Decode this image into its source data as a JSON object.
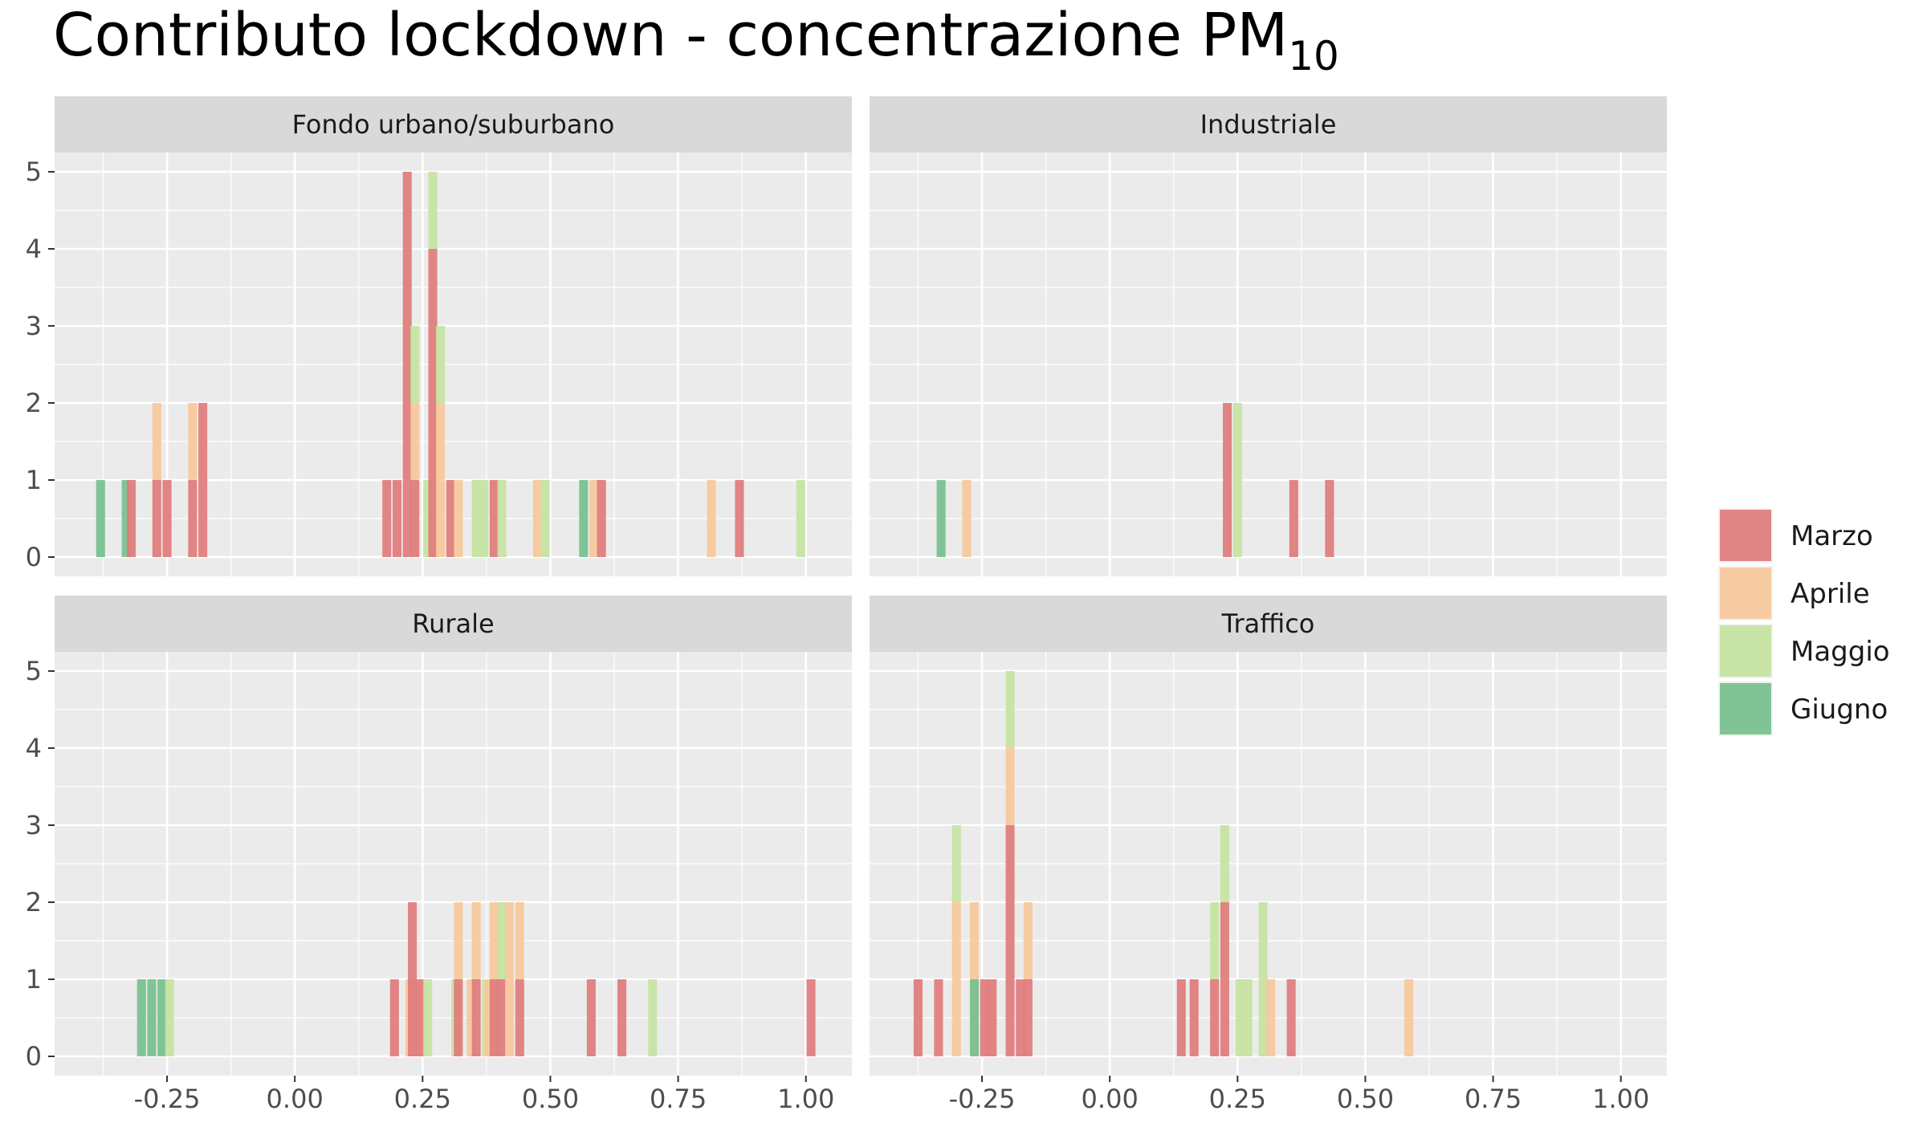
{
  "chart_data": {
    "type": "bar",
    "title": "Contributo lockdown - concentrazione PM",
    "title_subscript": "10",
    "xlabel": "",
    "ylabel": "",
    "xlim": [
      -0.47,
      1.09
    ],
    "ylim": [
      -0.25,
      5.25
    ],
    "x_ticks": [
      -0.25,
      0,
      0.25,
      0.5,
      0.75,
      1.0
    ],
    "x_tick_labels": [
      "-0.25",
      "0.00",
      "0.25",
      "0.50",
      "0.75",
      "1.00"
    ],
    "y_ticks": [
      0,
      1,
      2,
      3,
      4,
      5
    ],
    "y_tick_labels": [
      "0",
      "1",
      "2",
      "3",
      "4",
      "5"
    ],
    "grid": true,
    "stacked": true,
    "bin_width": 0.0174,
    "legend_position": "right",
    "series": [
      {
        "name": "Marzo",
        "color": "#E07B7B"
      },
      {
        "name": "Aprile",
        "color": "#F7C89B"
      },
      {
        "name": "Maggio",
        "color": "#C6E3A1"
      },
      {
        "name": "Giugno",
        "color": "#76C08E"
      }
    ],
    "panels": [
      {
        "title": "Fondo urbano/suburbano",
        "bars": [
          {
            "x": -0.38,
            "Giugno": 1
          },
          {
            "x": -0.33,
            "Giugno": 1
          },
          {
            "x": -0.32,
            "Marzo": 1
          },
          {
            "x": -0.27,
            "Marzo": 1,
            "Aprile": 1
          },
          {
            "x": -0.25,
            "Marzo": 1
          },
          {
            "x": -0.2,
            "Marzo": 1,
            "Aprile": 1
          },
          {
            "x": -0.18,
            "Marzo": 2
          },
          {
            "x": 0.18,
            "Marzo": 1
          },
          {
            "x": 0.2,
            "Marzo": 1
          },
          {
            "x": 0.22,
            "Marzo": 5
          },
          {
            "x": 0.235,
            "Marzo": 1,
            "Aprile": 1,
            "Maggio": 1
          },
          {
            "x": 0.26,
            "Maggio": 1
          },
          {
            "x": 0.27,
            "Marzo": 4,
            "Maggio": 1
          },
          {
            "x": 0.285,
            "Aprile": 2,
            "Maggio": 1
          },
          {
            "x": 0.305,
            "Marzo": 1
          },
          {
            "x": 0.32,
            "Aprile": 1
          },
          {
            "x": 0.355,
            "Maggio": 1
          },
          {
            "x": 0.37,
            "Maggio": 1
          },
          {
            "x": 0.39,
            "Marzo": 1
          },
          {
            "x": 0.405,
            "Maggio": 1
          },
          {
            "x": 0.475,
            "Aprile": 1
          },
          {
            "x": 0.49,
            "Maggio": 1
          },
          {
            "x": 0.565,
            "Giugno": 1
          },
          {
            "x": 0.585,
            "Aprile": 1
          },
          {
            "x": 0.6,
            "Marzo": 1
          },
          {
            "x": 0.815,
            "Aprile": 1
          },
          {
            "x": 0.87,
            "Marzo": 1
          },
          {
            "x": 0.99,
            "Maggio": 1
          }
        ]
      },
      {
        "title": "Industriale",
        "bars": [
          {
            "x": -0.33,
            "Giugno": 1
          },
          {
            "x": -0.28,
            "Aprile": 1
          },
          {
            "x": 0.23,
            "Marzo": 2
          },
          {
            "x": 0.25,
            "Maggio": 2
          },
          {
            "x": 0.36,
            "Marzo": 1
          },
          {
            "x": 0.43,
            "Marzo": 1
          }
        ]
      },
      {
        "title": "Rurale",
        "bars": [
          {
            "x": -0.3,
            "Giugno": 1
          },
          {
            "x": -0.28,
            "Giugno": 1
          },
          {
            "x": -0.26,
            "Giugno": 1
          },
          {
            "x": -0.245,
            "Maggio": 1
          },
          {
            "x": 0.195,
            "Marzo": 1
          },
          {
            "x": 0.225,
            "Aprile": 1
          },
          {
            "x": 0.23,
            "Marzo": 2
          },
          {
            "x": 0.245,
            "Marzo": 1
          },
          {
            "x": 0.26,
            "Maggio": 1
          },
          {
            "x": 0.315,
            "Maggio": 1
          },
          {
            "x": 0.32,
            "Marzo": 1,
            "Aprile": 1
          },
          {
            "x": 0.345,
            "Aprile": 1
          },
          {
            "x": 0.355,
            "Marzo": 1,
            "Aprile": 1
          },
          {
            "x": 0.375,
            "Maggio": 1
          },
          {
            "x": 0.38,
            "Aprile": 1
          },
          {
            "x": 0.39,
            "Marzo": 1,
            "Aprile": 1
          },
          {
            "x": 0.405,
            "Marzo": 1,
            "Maggio": 1
          },
          {
            "x": 0.42,
            "Aprile": 2
          },
          {
            "x": 0.44,
            "Marzo": 1,
            "Aprile": 1
          },
          {
            "x": 0.58,
            "Marzo": 1
          },
          {
            "x": 0.64,
            "Marzo": 1
          },
          {
            "x": 0.7,
            "Maggio": 1
          },
          {
            "x": 1.01,
            "Marzo": 1
          }
        ]
      },
      {
        "title": "Traffico",
        "bars": [
          {
            "x": -0.375,
            "Marzo": 1
          },
          {
            "x": -0.335,
            "Marzo": 1
          },
          {
            "x": -0.3,
            "Aprile": 2,
            "Maggio": 1
          },
          {
            "x": -0.265,
            "Aprile": 2
          },
          {
            "x": -0.265,
            "Giugno": 1
          },
          {
            "x": -0.245,
            "Marzo": 1
          },
          {
            "x": -0.23,
            "Marzo": 1
          },
          {
            "x": -0.195,
            "Marzo": 3,
            "Aprile": 1,
            "Maggio": 1
          },
          {
            "x": -0.175,
            "Marzo": 1
          },
          {
            "x": -0.16,
            "Marzo": 1,
            "Aprile": 1
          },
          {
            "x": 0.14,
            "Marzo": 1
          },
          {
            "x": 0.165,
            "Marzo": 1
          },
          {
            "x": 0.205,
            "Marzo": 1,
            "Maggio": 1
          },
          {
            "x": 0.225,
            "Marzo": 2,
            "Maggio": 1
          },
          {
            "x": 0.255,
            "Maggio": 1
          },
          {
            "x": 0.27,
            "Maggio": 1
          },
          {
            "x": 0.3,
            "Maggio": 2
          },
          {
            "x": 0.315,
            "Aprile": 1
          },
          {
            "x": 0.355,
            "Marzo": 1
          },
          {
            "x": 0.585,
            "Aprile": 1
          }
        ]
      }
    ]
  }
}
